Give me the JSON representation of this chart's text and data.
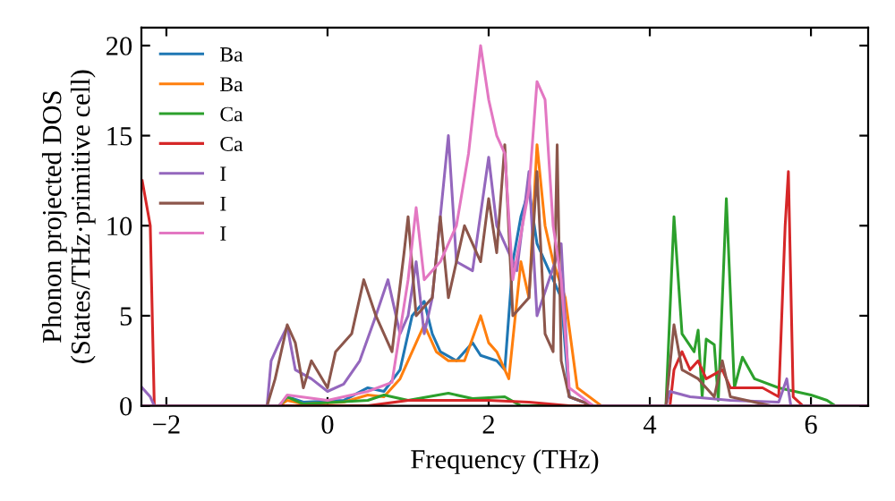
{
  "chart_data": {
    "type": "line",
    "xlabel": "Frequency (THz)",
    "ylabel": "Phonon projected DOS\n(States/THz·primitive cell)",
    "xlim": [
      -2.31,
      6.71
    ],
    "ylim": [
      0,
      21
    ],
    "xticks": [
      {
        "value": -2,
        "label": "−2"
      },
      0,
      2,
      4,
      6
    ],
    "yticks": [
      0,
      5,
      10,
      15,
      20
    ],
    "legend": "top left",
    "grid": false,
    "line_style": "solid",
    "marker": "none",
    "series": [
      {
        "name": "Ba",
        "color": "#1f77b4",
        "x": [
          -2.3,
          -0.6,
          -0.5,
          -0.3,
          0.2,
          0.5,
          0.7,
          0.9,
          1.05,
          1.2,
          1.3,
          1.4,
          1.6,
          1.8,
          1.9,
          2.1,
          2.2,
          2.3,
          2.4,
          2.5,
          2.6,
          2.7,
          2.8,
          2.9,
          3.0,
          3.3,
          6.7
        ],
        "values": [
          0,
          0,
          0.5,
          0.2,
          0.3,
          1.0,
          0.8,
          2.0,
          5.0,
          5.8,
          4.0,
          3.0,
          2.5,
          3.5,
          2.8,
          2.5,
          2.0,
          8.0,
          10.5,
          12.0,
          9.0,
          8.0,
          7.0,
          6.0,
          0.5,
          0,
          0
        ]
      },
      {
        "name": "Ba",
        "color": "#ff7f0e",
        "x": [
          -2.3,
          -0.6,
          -0.5,
          -0.3,
          0.2,
          0.5,
          0.7,
          0.9,
          1.1,
          1.2,
          1.35,
          1.5,
          1.7,
          1.9,
          2.0,
          2.1,
          2.25,
          2.4,
          2.5,
          2.6,
          2.7,
          2.8,
          2.95,
          3.1,
          3.4,
          6.7
        ],
        "values": [
          0,
          0,
          0.3,
          0.1,
          0.2,
          0.6,
          0.5,
          1.5,
          3.5,
          4.5,
          3.0,
          2.5,
          2.5,
          5.0,
          3.5,
          3.0,
          1.5,
          8.0,
          6.0,
          14.5,
          10.0,
          8.0,
          6.0,
          1.0,
          0,
          0
        ]
      },
      {
        "name": "Ca",
        "color": "#2ca02c",
        "x": [
          -2.3,
          -0.6,
          -0.5,
          -0.3,
          0.5,
          0.7,
          1.0,
          1.5,
          1.8,
          2.2,
          2.4,
          4.2,
          4.3,
          4.4,
          4.55,
          4.6,
          4.65,
          4.7,
          4.8,
          4.85,
          4.95,
          5.05,
          5.15,
          5.3,
          5.6,
          6.0,
          6.2,
          6.3,
          6.7
        ],
        "values": [
          0,
          0,
          0.5,
          0.1,
          0.3,
          0.6,
          0.3,
          0.7,
          0.4,
          0.5,
          0,
          0,
          10.5,
          4.0,
          3.0,
          4.2,
          0.5,
          3.7,
          3.4,
          0.3,
          11.5,
          1.0,
          2.7,
          1.5,
          1.0,
          0.6,
          0.3,
          0,
          0
        ]
      },
      {
        "name": "Ca",
        "color": "#d62728",
        "x": [
          -2.3,
          -2.2,
          -2.15,
          0.5,
          1.0,
          2.0,
          2.5,
          3.0,
          4.25,
          4.3,
          4.4,
          4.5,
          4.6,
          4.7,
          4.9,
          5.0,
          5.4,
          5.6,
          5.68,
          5.72,
          5.78,
          5.9,
          6.7
        ],
        "values": [
          12.5,
          10.0,
          0,
          0,
          0.3,
          0.3,
          0.2,
          0,
          0,
          2.0,
          3.0,
          2.0,
          2.5,
          1.5,
          2.0,
          1.0,
          1.0,
          0.5,
          10.0,
          13.0,
          0.5,
          0,
          0
        ]
      },
      {
        "name": "I",
        "color": "#9467bd",
        "x": [
          -2.3,
          -2.2,
          -2.15,
          -0.75,
          -0.7,
          -0.6,
          -0.5,
          -0.4,
          -0.2,
          0,
          0.2,
          0.4,
          0.6,
          0.75,
          0.9,
          1.0,
          1.1,
          1.2,
          1.3,
          1.5,
          1.6,
          1.8,
          2.0,
          2.1,
          2.2,
          2.35,
          2.5,
          2.6,
          2.9,
          3.0,
          3.3,
          4.2,
          4.25,
          4.5,
          5.0,
          5.6,
          5.7,
          5.75,
          6.7
        ],
        "values": [
          1.0,
          0.5,
          0,
          0,
          2.5,
          3.5,
          4.4,
          2.0,
          1.5,
          0.8,
          1.2,
          2.5,
          5.0,
          7.0,
          4.0,
          5.0,
          8.0,
          4.0,
          6.0,
          15.0,
          8.0,
          7.5,
          13.8,
          10.0,
          9.0,
          7.5,
          13.0,
          5.0,
          9.0,
          0.5,
          0,
          0,
          0.8,
          0.5,
          0.3,
          0.2,
          1.5,
          0,
          0
        ]
      },
      {
        "name": "I",
        "color": "#8c564b",
        "x": [
          -2.3,
          -0.75,
          -0.65,
          -0.5,
          -0.4,
          -0.3,
          -0.2,
          0,
          0.1,
          0.3,
          0.45,
          0.6,
          0.8,
          0.95,
          1.0,
          1.1,
          1.3,
          1.4,
          1.5,
          1.7,
          1.9,
          2.0,
          2.1,
          2.2,
          2.3,
          2.5,
          2.6,
          2.7,
          2.8,
          2.85,
          2.9,
          3.0,
          3.3,
          4.2,
          4.3,
          4.4,
          4.6,
          4.8,
          4.9,
          5.0,
          5.2,
          5.5,
          6.7
        ],
        "values": [
          0,
          0,
          1.5,
          4.5,
          3.5,
          1.0,
          2.5,
          1.0,
          3.0,
          4.0,
          7.0,
          5.0,
          3.0,
          8.5,
          10.5,
          5.0,
          6.0,
          10.5,
          6.0,
          10.0,
          8.0,
          11.5,
          8.5,
          14.5,
          5.0,
          6.0,
          13.0,
          4.0,
          3.0,
          14.5,
          2.5,
          0.5,
          0,
          0,
          4.5,
          2.0,
          1.5,
          0.5,
          2.5,
          0.5,
          0.3,
          0,
          0
        ]
      },
      {
        "name": "I",
        "color": "#e377c2",
        "x": [
          -2.3,
          -0.6,
          -0.5,
          0,
          0.5,
          0.8,
          1.0,
          1.1,
          1.2,
          1.4,
          1.6,
          1.75,
          1.9,
          2.0,
          2.1,
          2.2,
          2.3,
          2.5,
          2.6,
          2.7,
          2.8,
          2.9,
          3.0,
          3.3,
          6.7
        ],
        "values": [
          0,
          0,
          0.6,
          0.3,
          0.8,
          1.3,
          7.0,
          11.0,
          7.0,
          8.0,
          10.0,
          14.0,
          20.0,
          17.0,
          15.0,
          14.0,
          7.0,
          12.0,
          18.0,
          17.0,
          10.0,
          7.0,
          1.0,
          0,
          0
        ]
      }
    ]
  }
}
